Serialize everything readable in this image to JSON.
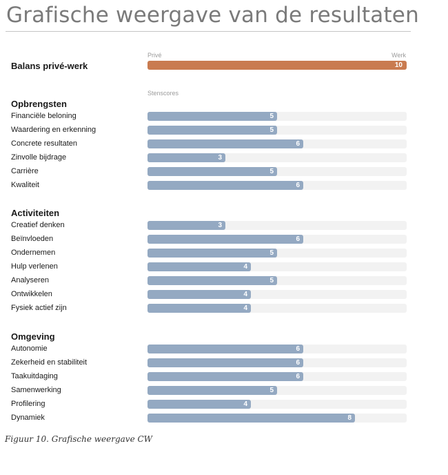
{
  "page": {
    "title": "Grafische weergave van de resultaten"
  },
  "caption": "Figuur 10. Grafische weergave CW",
  "chart_data": {
    "type": "bar",
    "orientation": "horizontal",
    "balance": {
      "label": "Balans privé-werk",
      "left_label": "Privé",
      "right_label": "Werk",
      "value": 10,
      "max": 10,
      "color": "#c97b50"
    },
    "scale_label": "Stenscores",
    "xlim": [
      0,
      10
    ],
    "bar_color": "#94a9c2",
    "sections": [
      {
        "title": "Opbrengsten",
        "categories": [
          "Financiële beloning",
          "Waardering en erkenning",
          "Concrete resultaten",
          "Zinvolle bijdrage",
          "Carrière",
          "Kwaliteit"
        ],
        "values": [
          5,
          5,
          6,
          3,
          5,
          6
        ]
      },
      {
        "title": "Activiteiten",
        "categories": [
          "Creatief denken",
          "Beïnvloeden",
          "Ondernemen",
          "Hulp verlenen",
          "Analyseren",
          "Ontwikkelen",
          "Fysiek actief zijn"
        ],
        "values": [
          3,
          6,
          5,
          4,
          5,
          4,
          4
        ]
      },
      {
        "title": "Omgeving",
        "categories": [
          "Autonomie",
          "Zekerheid en stabiliteit",
          "Taakuitdaging",
          "Samenwerking",
          "Profilering",
          "Dynamiek"
        ],
        "values": [
          6,
          6,
          6,
          5,
          4,
          8
        ]
      }
    ]
  }
}
